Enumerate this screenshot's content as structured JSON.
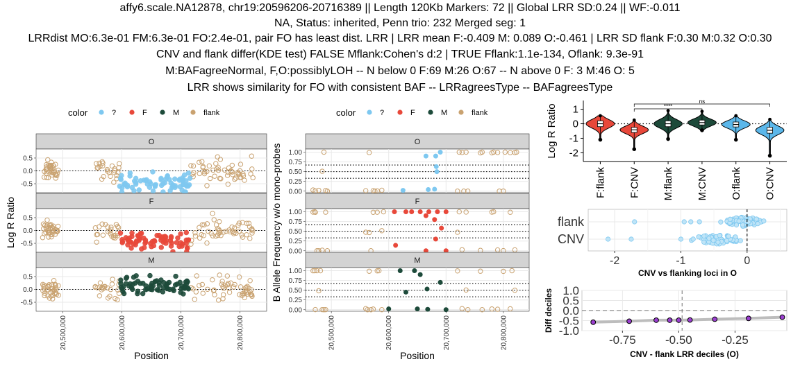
{
  "title_lines": [
    "affy6.scale.NA12878, chr19:20596206-20716389 || Length 120Kb Markers: 72 || Global LRR SD:0.24 || WF:-0.011",
    "NA, Status: inherited, Penn trio: 232 Merged seg: 1",
    "LRRdist MO:6.3e-01 FM:6.3e-01 FO:2.4e-01, pair FO has least dist. LRR | LRR mean F:-0.409 M: 0.089 O:-0.461 | LRR SD flank F:0.30 M:0.32 O:0.30",
    "CNV and flank differ(KDE test) FALSE Mflank:Cohen's d:2 | TRUE Fflank:1.1e-134, Oflank: 9.3e-91",
    "M:BAFagreeNormal, F,O:possiblyLOH  -- N below 0 F:69 M:26 O:67 -- N above 0 F: 3 M:46 O: 5",
    "LRR shows similarity for FO with consistent BAF -- LRRagreesType -- BAFagreesType"
  ],
  "colors": {
    "unknown": "#7ec8f0",
    "F": "#e8483a",
    "M": "#1d4a3a",
    "flank": "#c9a270",
    "O_violin": "#5bb7ea",
    "strip_bg": "#d3d3d3",
    "grid": "#e8e8e8"
  },
  "legend": {
    "title": "color",
    "items": [
      {
        "key": "unknown",
        "label": "?"
      },
      {
        "key": "F",
        "label": "F"
      },
      {
        "key": "M",
        "label": "M"
      },
      {
        "key": "flank",
        "label": "flank"
      }
    ]
  },
  "chart_data": [
    {
      "id": "lrr",
      "type": "scatter",
      "ylabel": "Log R Ratio",
      "xlabel": "Position",
      "xlim": [
        20455000,
        20845000
      ],
      "ylim": [
        -0.85,
        0.85
      ],
      "xticks": [
        20500000,
        20600000,
        20700000,
        20800000
      ],
      "xtick_labels": [
        "20,500,000",
        "20,600,000",
        "20,700,000",
        "20,800,000"
      ],
      "yticks": [
        0.5,
        0.0,
        -0.5
      ],
      "ytick_labels": [
        "0.5",
        "0.0",
        "-0.5"
      ],
      "hline": 0,
      "cnv_range": [
        20596206,
        20716389
      ],
      "panels": [
        {
          "name": "O",
          "cnv_color": "unknown",
          "cnv_mean": -0.46
        },
        {
          "name": "F",
          "cnv_color": "F",
          "cnv_mean": -0.41
        },
        {
          "name": "M",
          "cnv_color": "M",
          "cnv_mean": 0.09
        }
      ]
    },
    {
      "id": "baf",
      "type": "scatter",
      "ylabel": "B Allele Frequency w/o mono-probes",
      "xlabel": "Position",
      "xlim": [
        20455000,
        20845000
      ],
      "ylim": [
        -0.04,
        1.08
      ],
      "xticks": [
        20500000,
        20600000,
        20700000,
        20800000
      ],
      "xtick_labels": [
        "20,500,000",
        "20,600,000",
        "20,700,000",
        "20,800,000"
      ],
      "yticks": [
        1.0,
        0.75,
        0.5,
        0.25,
        0.0
      ],
      "ytick_labels": [
        "1.00",
        "0.75",
        "0.50",
        "0.25",
        "0.00"
      ],
      "hlines": [
        0.33,
        0.5,
        0.67
      ],
      "panels": [
        {
          "name": "O",
          "cnv_color": "unknown",
          "cnv_points": [
            [
              20665000,
              0.9
            ],
            [
              20682000,
              0.9
            ],
            [
              20690000,
              1.0
            ],
            [
              20683000,
              0.63
            ],
            [
              20684000,
              0.5
            ],
            [
              20680000,
              0.05
            ],
            [
              20625000,
              0.02
            ],
            [
              20669000,
              0.04
            ]
          ]
        },
        {
          "name": "F",
          "cnv_color": "F",
          "cnv_points": [
            [
              20610000,
              1.0
            ],
            [
              20630000,
              1.0
            ],
            [
              20640000,
              1.0
            ],
            [
              20655000,
              1.0
            ],
            [
              20670000,
              1.0
            ],
            [
              20685000,
              1.0
            ],
            [
              20700000,
              1.0
            ],
            [
              20665000,
              0.9
            ],
            [
              20680000,
              0.8
            ],
            [
              20692000,
              0.58
            ],
            [
              20682000,
              0.3
            ],
            [
              20612000,
              0.14
            ],
            [
              20665000,
              0.0
            ],
            [
              20700000,
              0.0
            ]
          ]
        },
        {
          "name": "M",
          "cnv_color": "M",
          "cnv_points": [
            [
              20620000,
              1.0
            ],
            [
              20645000,
              1.0
            ],
            [
              20655000,
              0.9
            ],
            [
              20690000,
              0.7
            ],
            [
              20667000,
              0.53
            ],
            [
              20630000,
              0.45
            ],
            [
              20600000,
              0.02
            ],
            [
              20650000,
              0.02
            ],
            [
              20668000,
              0.01
            ],
            [
              20700000,
              0.0
            ]
          ]
        }
      ]
    },
    {
      "id": "violin",
      "type": "violin",
      "ylabel": "Log R Ratio",
      "ylim": [
        -2.6,
        1.6
      ],
      "yticks": [
        1,
        0,
        -1,
        -2
      ],
      "ytick_labels": [
        "1",
        "0",
        "-1",
        "-2"
      ],
      "hline": 0,
      "categories": [
        "F:flank",
        "F:CNV",
        "M:flank",
        "M:CNV",
        "O:flank",
        "O:CNV"
      ],
      "fill_keys": [
        "F",
        "F",
        "M",
        "M",
        "O_violin",
        "O_violin"
      ],
      "medians": [
        0.0,
        -0.42,
        0.0,
        0.08,
        -0.05,
        -0.45
      ],
      "q1": [
        -0.2,
        -0.6,
        -0.2,
        -0.08,
        -0.22,
        -0.65
      ],
      "q3": [
        0.2,
        -0.25,
        0.2,
        0.25,
        0.12,
        -0.25
      ],
      "mins": [
        -1.1,
        -1.75,
        -1.05,
        -0.45,
        -1.1,
        -2.2
      ],
      "maxs": [
        0.55,
        0.25,
        0.9,
        0.85,
        0.55,
        0.3
      ],
      "significance": [
        {
          "from": 1,
          "to": 5,
          "label": "ns",
          "level": 2
        },
        {
          "from": 1,
          "to": 3,
          "label": "****",
          "level": 1
        }
      ]
    },
    {
      "id": "strip",
      "type": "scatter",
      "title": "CNV vs flanking loci in O",
      "categories": [
        "flank",
        "CNV"
      ],
      "xlim": [
        -2.4,
        0.6
      ],
      "xticks": [
        -2,
        -1,
        0
      ],
      "xtick_labels": [
        "-2",
        "-1",
        "0"
      ],
      "vline": 0,
      "groups": [
        {
          "name": "flank",
          "outliers": [
            -1.7,
            -0.95,
            -0.85,
            -0.72
          ],
          "bulk_center": -0.05,
          "bulk_spread": 0.3,
          "n": 60
        },
        {
          "name": "CNV",
          "outliers": [
            -2.1,
            -1.75,
            -1.0
          ],
          "bulk_center": -0.45,
          "bulk_spread": 0.35,
          "n": 55
        }
      ]
    },
    {
      "id": "deciles",
      "type": "line",
      "title": "CNV - flank LRR deciles (O)",
      "ylabel": "Diff deciles",
      "xlim": [
        -0.93,
        -0.02
      ],
      "ylim": [
        -1.0,
        1.0
      ],
      "xticks": [
        -0.75,
        -0.5,
        -0.25
      ],
      "xtick_labels": [
        "-0.75",
        "-0.50",
        "-0.25"
      ],
      "yticks": [
        1.0,
        0.5,
        0.0,
        -0.5,
        -1.0
      ],
      "ytick_labels": [
        "1.0",
        "0.5",
        "0.0",
        "-0.5",
        "-1.0"
      ],
      "hline": 0,
      "vline": -0.485,
      "x": [
        -0.88,
        -0.72,
        -0.6,
        -0.54,
        -0.5,
        -0.45,
        -0.34,
        -0.19,
        -0.04
      ],
      "y": [
        -0.58,
        -0.53,
        -0.48,
        -0.48,
        -0.48,
        -0.47,
        -0.43,
        -0.39,
        -0.33
      ]
    }
  ]
}
